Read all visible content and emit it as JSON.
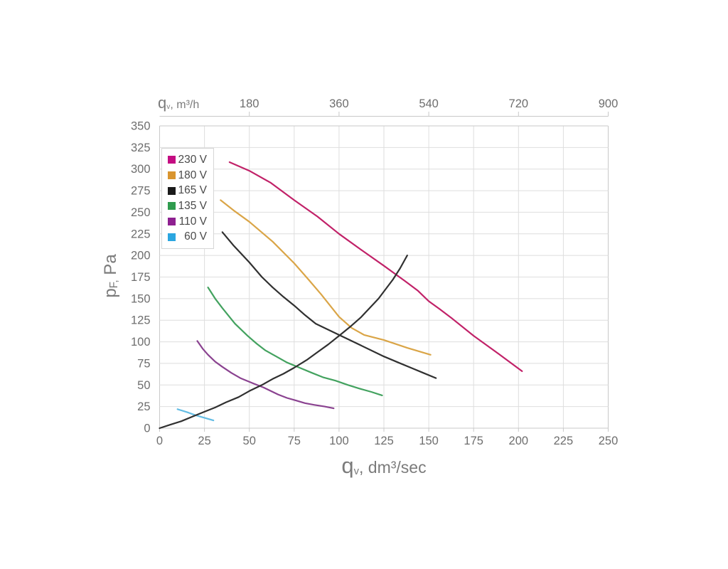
{
  "page": {
    "background": "#ffffff"
  },
  "chart_data": {
    "type": "line",
    "title": "",
    "grid": true,
    "legend_position": "top-left-inside",
    "x_axis_bottom": {
      "title": {
        "q": "q",
        "sub": "v",
        "rest": ", dm³/sec"
      },
      "range": [
        0,
        250
      ],
      "ticks": [
        0,
        25,
        50,
        75,
        100,
        125,
        150,
        175,
        200,
        225,
        250
      ]
    },
    "x_axis_top": {
      "title": {
        "q": "q",
        "sub": "v",
        "rest": ", m³/h"
      },
      "range": [
        0,
        900
      ],
      "ticks": [
        180,
        360,
        540,
        720,
        900
      ]
    },
    "y_axis": {
      "title": {
        "p": "p",
        "sub": "F,",
        "rest": " Pa"
      },
      "range": [
        0,
        350
      ],
      "ticks": [
        0,
        25,
        50,
        75,
        100,
        125,
        150,
        175,
        200,
        225,
        250,
        275,
        300,
        325,
        350
      ]
    },
    "legend": [
      {
        "key": "230v",
        "label": "230 V",
        "swatch_color": "#c40d82"
      },
      {
        "key": "180v",
        "label": "180 V",
        "swatch_color": "#d9952f"
      },
      {
        "key": "165v",
        "label": "165 V",
        "swatch_color": "#1a1a1a"
      },
      {
        "key": "135v",
        "label": "135 V",
        "swatch_color": "#2f9c4e"
      },
      {
        "key": "110v",
        "label": "110 V",
        "swatch_color": "#8e2090"
      },
      {
        "key": "60v",
        "label": "60 V",
        "swatch_color": "#2ba6e0"
      }
    ],
    "series": [
      {
        "key": "230v",
        "name": "230 V",
        "color": "#c12168",
        "in_legend": true,
        "points": [
          [
            39,
            308
          ],
          [
            50,
            298
          ],
          [
            62,
            284
          ],
          [
            75,
            264
          ],
          [
            88,
            245
          ],
          [
            100,
            225
          ],
          [
            112,
            207
          ],
          [
            125,
            188
          ],
          [
            137,
            170
          ],
          [
            144,
            159
          ],
          [
            150,
            147
          ],
          [
            156,
            138
          ],
          [
            163,
            127
          ],
          [
            175,
            107
          ],
          [
            189,
            86
          ],
          [
            202,
            66
          ]
        ]
      },
      {
        "key": "180v",
        "name": "180 V",
        "color": "#daa547",
        "in_legend": true,
        "points": [
          [
            34,
            264
          ],
          [
            42,
            251
          ],
          [
            50,
            239
          ],
          [
            63,
            216
          ],
          [
            75,
            191
          ],
          [
            83,
            172
          ],
          [
            90,
            155
          ],
          [
            100,
            129
          ],
          [
            107,
            116
          ],
          [
            114,
            108
          ],
          [
            125,
            102
          ],
          [
            138,
            93
          ],
          [
            151,
            85
          ]
        ]
      },
      {
        "key": "165v",
        "name": "165 V",
        "color": "#303030",
        "in_legend": true,
        "points": [
          [
            35,
            227
          ],
          [
            41,
            212
          ],
          [
            50,
            192
          ],
          [
            57,
            175
          ],
          [
            63,
            163
          ],
          [
            69,
            152
          ],
          [
            75,
            142
          ],
          [
            81,
            131
          ],
          [
            87,
            121
          ],
          [
            94,
            114
          ],
          [
            100,
            108
          ],
          [
            112,
            96
          ],
          [
            125,
            83
          ],
          [
            133,
            76
          ],
          [
            140,
            70
          ],
          [
            147,
            64
          ],
          [
            154,
            58
          ]
        ]
      },
      {
        "key": "135v",
        "name": "135 V",
        "color": "#43a25f",
        "in_legend": true,
        "points": [
          [
            27,
            163
          ],
          [
            31,
            150
          ],
          [
            35,
            139
          ],
          [
            42,
            121
          ],
          [
            49,
            107
          ],
          [
            54,
            98
          ],
          [
            59,
            90
          ],
          [
            65,
            83
          ],
          [
            71,
            76
          ],
          [
            78,
            70
          ],
          [
            85,
            64
          ],
          [
            91,
            59
          ],
          [
            98,
            55
          ],
          [
            105,
            50
          ],
          [
            111,
            46
          ],
          [
            118,
            42
          ],
          [
            124,
            38
          ]
        ]
      },
      {
        "key": "110v",
        "name": "110 V",
        "color": "#8a4290",
        "in_legend": true,
        "points": [
          [
            21,
            101
          ],
          [
            24,
            92
          ],
          [
            27,
            85
          ],
          [
            31,
            77
          ],
          [
            35,
            71
          ],
          [
            40,
            64
          ],
          [
            45,
            58
          ],
          [
            52,
            52
          ],
          [
            58,
            47
          ],
          [
            62,
            43
          ],
          [
            66,
            39
          ],
          [
            71,
            35
          ],
          [
            76,
            32
          ],
          [
            81,
            29
          ],
          [
            86,
            27
          ],
          [
            92,
            25
          ],
          [
            97,
            23
          ]
        ]
      },
      {
        "key": "60v",
        "name": "60 V",
        "color": "#63bce4",
        "in_legend": true,
        "points": [
          [
            10,
            22
          ],
          [
            16,
            18
          ],
          [
            20,
            15
          ],
          [
            25,
            12
          ],
          [
            30,
            9
          ]
        ]
      },
      {
        "key": "system",
        "name": "system-resistance-curve",
        "color": "#303030",
        "in_legend": false,
        "points": [
          [
            0,
            0
          ],
          [
            6,
            4
          ],
          [
            12,
            8
          ],
          [
            19,
            14
          ],
          [
            25,
            19
          ],
          [
            31,
            24
          ],
          [
            37,
            30
          ],
          [
            44,
            36
          ],
          [
            50,
            43
          ],
          [
            57,
            50
          ],
          [
            63,
            57
          ],
          [
            69,
            63
          ],
          [
            75,
            70
          ],
          [
            82,
            79
          ],
          [
            88,
            88
          ],
          [
            94,
            97
          ],
          [
            100,
            107
          ],
          [
            106,
            117
          ],
          [
            112,
            128
          ],
          [
            117,
            139
          ],
          [
            122,
            150
          ],
          [
            126,
            161
          ],
          [
            130,
            172
          ],
          [
            134,
            185
          ],
          [
            138,
            200
          ]
        ]
      }
    ],
    "style": {
      "grid_color": "#dedede",
      "border_color": "#c9c9c9",
      "tick_text_color": "#6e6e6e",
      "line_width": 2.2
    }
  }
}
